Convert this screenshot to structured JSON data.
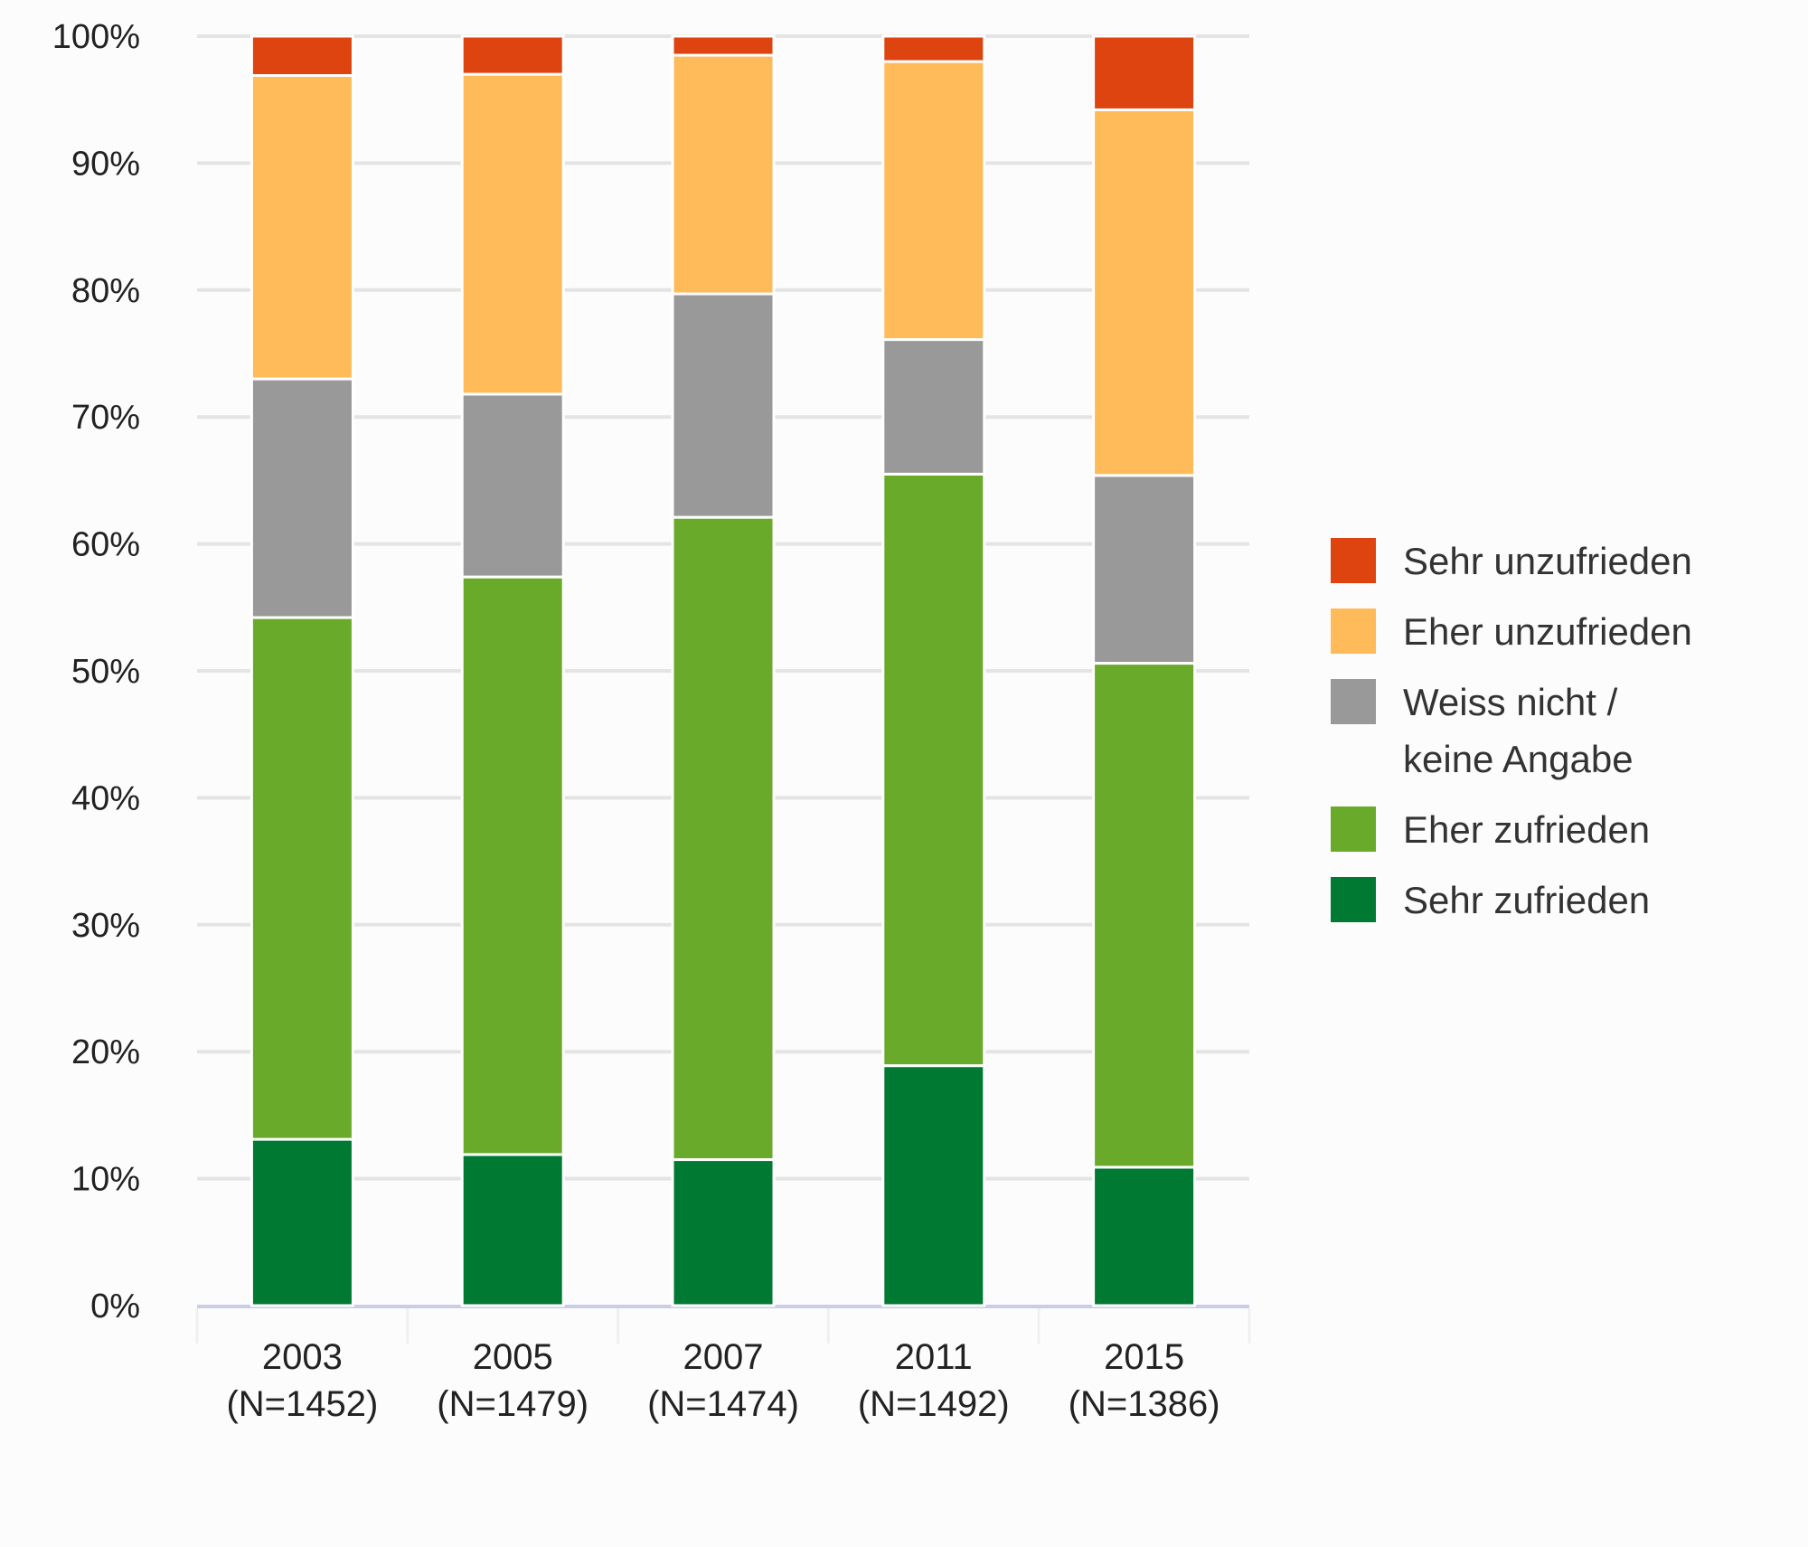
{
  "chart_data": {
    "type": "bar",
    "stacked": true,
    "categories": [
      [
        "2003",
        "(N=1452)"
      ],
      [
        "2005",
        "(N=1479)"
      ],
      [
        "2007",
        "(N=1474)"
      ],
      [
        "2011",
        "(N=1492)"
      ],
      [
        "2015",
        "(N=1386)"
      ]
    ],
    "series": [
      {
        "name": "Sehr zufrieden",
        "color": "#007a33",
        "values": [
          13.1,
          11.9,
          11.5,
          18.9,
          10.9
        ]
      },
      {
        "name": "Eher zufrieden",
        "color": "#6aaa2b",
        "values": [
          41.1,
          45.5,
          50.6,
          46.6,
          39.7
        ]
      },
      {
        "name": "Weiss nicht / keine Angabe",
        "label_lines": [
          "Weiss nicht /",
          "keine Angabe"
        ],
        "color": "#999999",
        "values": [
          18.8,
          14.4,
          17.6,
          10.6,
          14.8
        ]
      },
      {
        "name": "Eher unzufrieden",
        "color": "#ffbb5a",
        "values": [
          23.9,
          25.2,
          18.8,
          21.9,
          28.8
        ]
      },
      {
        "name": "Sehr unzufrieden",
        "color": "#dd4410",
        "values": [
          3.1,
          3.0,
          1.5,
          2.0,
          5.8
        ]
      }
    ],
    "yticks": [
      "0%",
      "10%",
      "20%",
      "30%",
      "40%",
      "50%",
      "60%",
      "70%",
      "80%",
      "90%",
      "100%"
    ],
    "ylim": [
      0,
      100
    ],
    "grid": true,
    "legend_position": "right",
    "legend_order": [
      "Sehr unzufrieden",
      "Eher unzufrieden",
      "Weiss nicht / keine Angabe",
      "Eher zufrieden",
      "Sehr zufrieden"
    ],
    "title": "",
    "xlabel": "",
    "ylabel": ""
  }
}
